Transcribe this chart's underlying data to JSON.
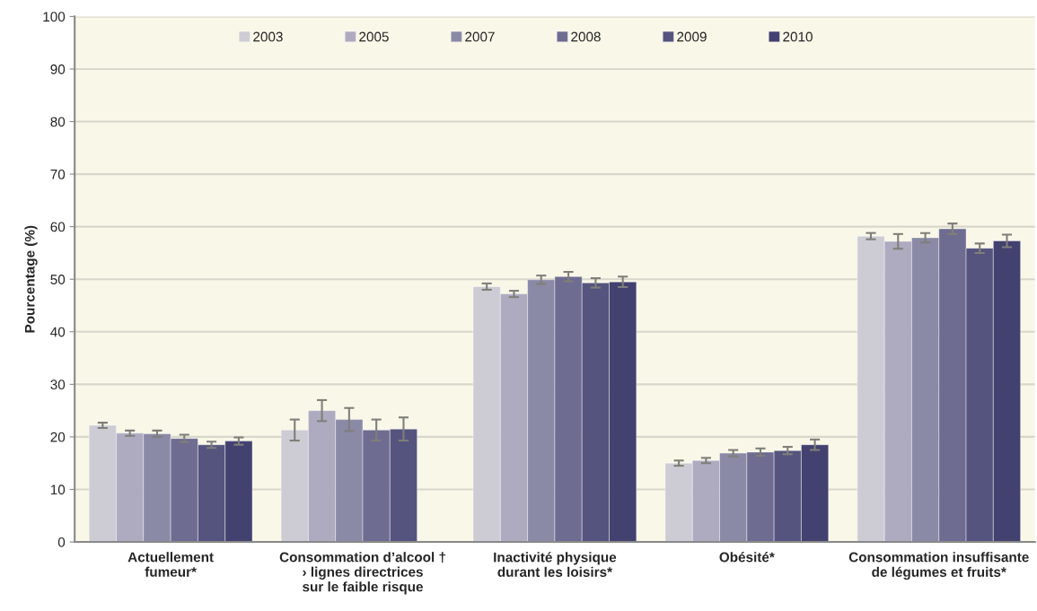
{
  "chart_data": {
    "type": "bar",
    "ylabel": "Pourcentage (%)",
    "categories": [
      "Actuellement\nfumeur*",
      "Consommation d’alcool †\n› lignes directrices\nsur le faible risque",
      "Inactivité physique\ndurant les loisirs*",
      "Obésité*",
      "Consommation insuffisante\nde légumes et fruits*"
    ],
    "series": [
      {
        "name": "2003",
        "color": "#cdccd4",
        "values": [
          22.2,
          21.3,
          48.6,
          15.0,
          58.2
        ],
        "errors": [
          0.5,
          2.0,
          0.6,
          0.5,
          0.6
        ]
      },
      {
        "name": "2005",
        "color": "#aeabc0",
        "values": [
          20.7,
          25.0,
          47.2,
          15.5,
          57.2
        ],
        "errors": [
          0.5,
          2.0,
          0.6,
          0.5,
          1.4
        ]
      },
      {
        "name": "2007",
        "color": "#8a89a6",
        "values": [
          20.6,
          23.3,
          49.9,
          16.9,
          57.9
        ],
        "errors": [
          0.6,
          2.2,
          0.8,
          0.6,
          0.9
        ]
      },
      {
        "name": "2008",
        "color": "#6e6c90",
        "values": [
          19.7,
          21.3,
          50.5,
          17.1,
          59.6
        ],
        "errors": [
          0.7,
          2.0,
          0.9,
          0.7,
          1.0
        ]
      },
      {
        "name": "2009",
        "color": "#55547e",
        "values": [
          18.5,
          21.5,
          49.3,
          17.4,
          55.9
        ],
        "errors": [
          0.6,
          2.2,
          0.9,
          0.7,
          0.9
        ]
      },
      {
        "name": "2010",
        "color": "#424170",
        "values": [
          19.2,
          null,
          49.5,
          18.5,
          57.3
        ],
        "errors": [
          0.7,
          null,
          1.0,
          1.0,
          1.2
        ]
      }
    ],
    "ylim": [
      0,
      100
    ],
    "yticks": [
      0,
      10,
      20,
      30,
      40,
      50,
      60,
      70,
      80,
      90,
      100
    ],
    "grid": "y",
    "legend": "top"
  }
}
